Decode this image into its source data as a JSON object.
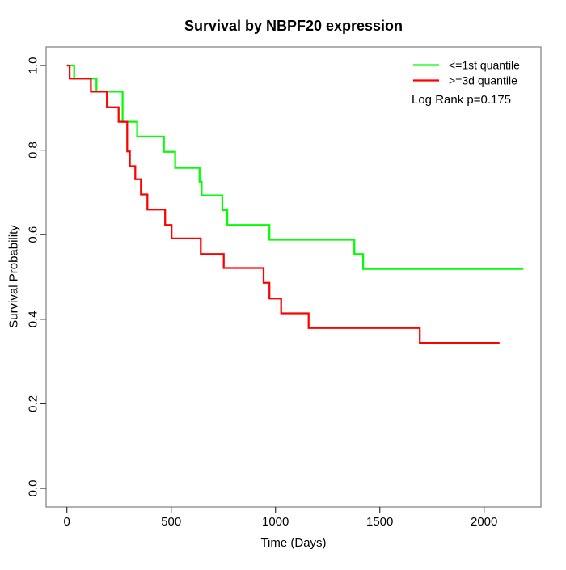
{
  "chart_data": {
    "type": "line",
    "variant": "kaplan_meier_step",
    "title": "Survival by NBPF20 expression",
    "xlabel": "Time (Days)",
    "ylabel": "Survival Probability",
    "xlim": [
      0,
      2200
    ],
    "ylim": [
      0.0,
      1.0
    ],
    "grid": false,
    "legend_position": "top-right",
    "annotation": "Log Rank p=0.175",
    "x_ticks": [
      0,
      500,
      1000,
      1500,
      2000
    ],
    "x_tick_labels": [
      "0",
      "500",
      "1000",
      "1500",
      "2000"
    ],
    "y_ticks": [
      0.0,
      0.2,
      0.4,
      0.6,
      0.8,
      1.0
    ],
    "y_tick_labels": [
      "0.0",
      "0.2",
      "0.4",
      "0.6",
      "0.8",
      "1.0"
    ],
    "series": [
      {
        "name": "<=1st quantile",
        "color": "#00ff00",
        "points": [
          [
            0,
            1.0
          ],
          [
            35,
            0.969
          ],
          [
            142,
            0.938
          ],
          [
            267,
            0.867
          ],
          [
            337,
            0.832
          ],
          [
            465,
            0.796
          ],
          [
            519,
            0.758
          ],
          [
            636,
            0.725
          ],
          [
            646,
            0.693
          ],
          [
            745,
            0.658
          ],
          [
            769,
            0.623
          ],
          [
            971,
            0.588
          ],
          [
            1378,
            0.554
          ],
          [
            1420,
            0.519
          ]
        ],
        "end_time": 2188
      },
      {
        "name": ">=3d quantile",
        "color": "#ff0000",
        "points": [
          [
            0,
            1.0
          ],
          [
            13,
            0.969
          ],
          [
            115,
            0.938
          ],
          [
            192,
            0.901
          ],
          [
            248,
            0.867
          ],
          [
            289,
            0.797
          ],
          [
            302,
            0.762
          ],
          [
            328,
            0.731
          ],
          [
            355,
            0.695
          ],
          [
            386,
            0.659
          ],
          [
            471,
            0.623
          ],
          [
            502,
            0.591
          ],
          [
            642,
            0.554
          ],
          [
            752,
            0.521
          ],
          [
            943,
            0.486
          ],
          [
            971,
            0.449
          ],
          [
            1027,
            0.414
          ],
          [
            1159,
            0.379
          ],
          [
            1692,
            0.344
          ]
        ],
        "end_time": 2074
      }
    ]
  }
}
